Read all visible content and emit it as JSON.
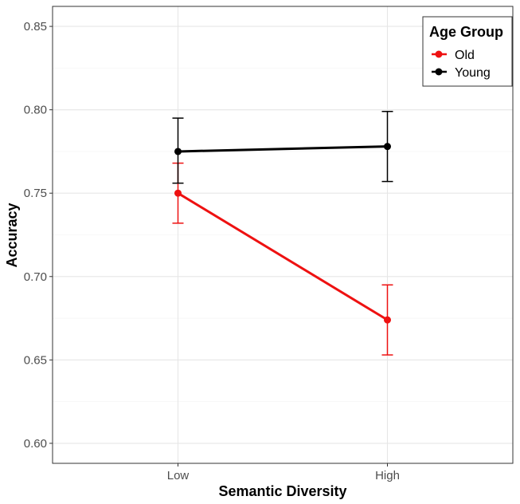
{
  "chart_data": {
    "type": "line",
    "categories": [
      "Low",
      "High"
    ],
    "xlabel": "Semantic Diversity",
    "ylabel": "Accuracy",
    "ylim": [
      0.588,
      0.862
    ],
    "yticks": [
      0.6,
      0.65,
      0.7,
      0.75,
      0.8,
      0.85
    ],
    "ytick_labels": [
      "0.60",
      "0.65",
      "0.70",
      "0.75",
      "0.80",
      "0.85"
    ],
    "grid": true,
    "legend": {
      "title": "Age Group",
      "placement": "top-right",
      "entries": [
        "Old",
        "Young"
      ]
    },
    "series": [
      {
        "name": "Old",
        "color": "#ee1111",
        "values": [
          0.75,
          0.674
        ],
        "err_low": [
          0.732,
          0.653
        ],
        "err_high": [
          0.768,
          0.695
        ]
      },
      {
        "name": "Young",
        "color": "#000000",
        "values": [
          0.775,
          0.778
        ],
        "err_low": [
          0.756,
          0.757
        ],
        "err_high": [
          0.795,
          0.799
        ]
      }
    ]
  }
}
